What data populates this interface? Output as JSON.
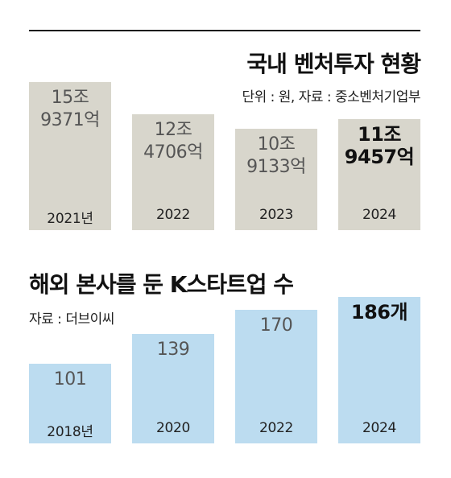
{
  "chart_data": [
    {
      "type": "bar",
      "title": "국내 벤처투자 현황",
      "subtitle": "단위 : 원, 자료 : 중소벤처기업부",
      "categories": [
        "2021년",
        "2022",
        "2023",
        "2024"
      ],
      "values": [
        159371,
        124706,
        109133,
        119457
      ],
      "value_labels": [
        [
          "15조",
          "9371억"
        ],
        [
          "12조",
          "4706억"
        ],
        [
          "10조",
          "9133억"
        ],
        [
          "11조",
          "9457억"
        ]
      ],
      "highlight_index": 3,
      "ylim": [
        0,
        160000
      ],
      "colors": {
        "bar": "#d8d6cc",
        "text": "#555555",
        "highlight_text": "#111111"
      }
    },
    {
      "type": "bar",
      "title": "해외 본사를 둔 K스타트업 수",
      "subtitle": "자료 : 더브이씨",
      "categories": [
        "2018년",
        "2020",
        "2022",
        "2024"
      ],
      "values": [
        101,
        139,
        170,
        186
      ],
      "value_labels": [
        [
          "101"
        ],
        [
          "139"
        ],
        [
          "170"
        ],
        [
          "186개"
        ]
      ],
      "highlight_index": 3,
      "ylim": [
        0,
        186
      ],
      "colors": {
        "bar": "#bcdcf0",
        "text": "#555555",
        "highlight_text": "#111111"
      }
    }
  ]
}
